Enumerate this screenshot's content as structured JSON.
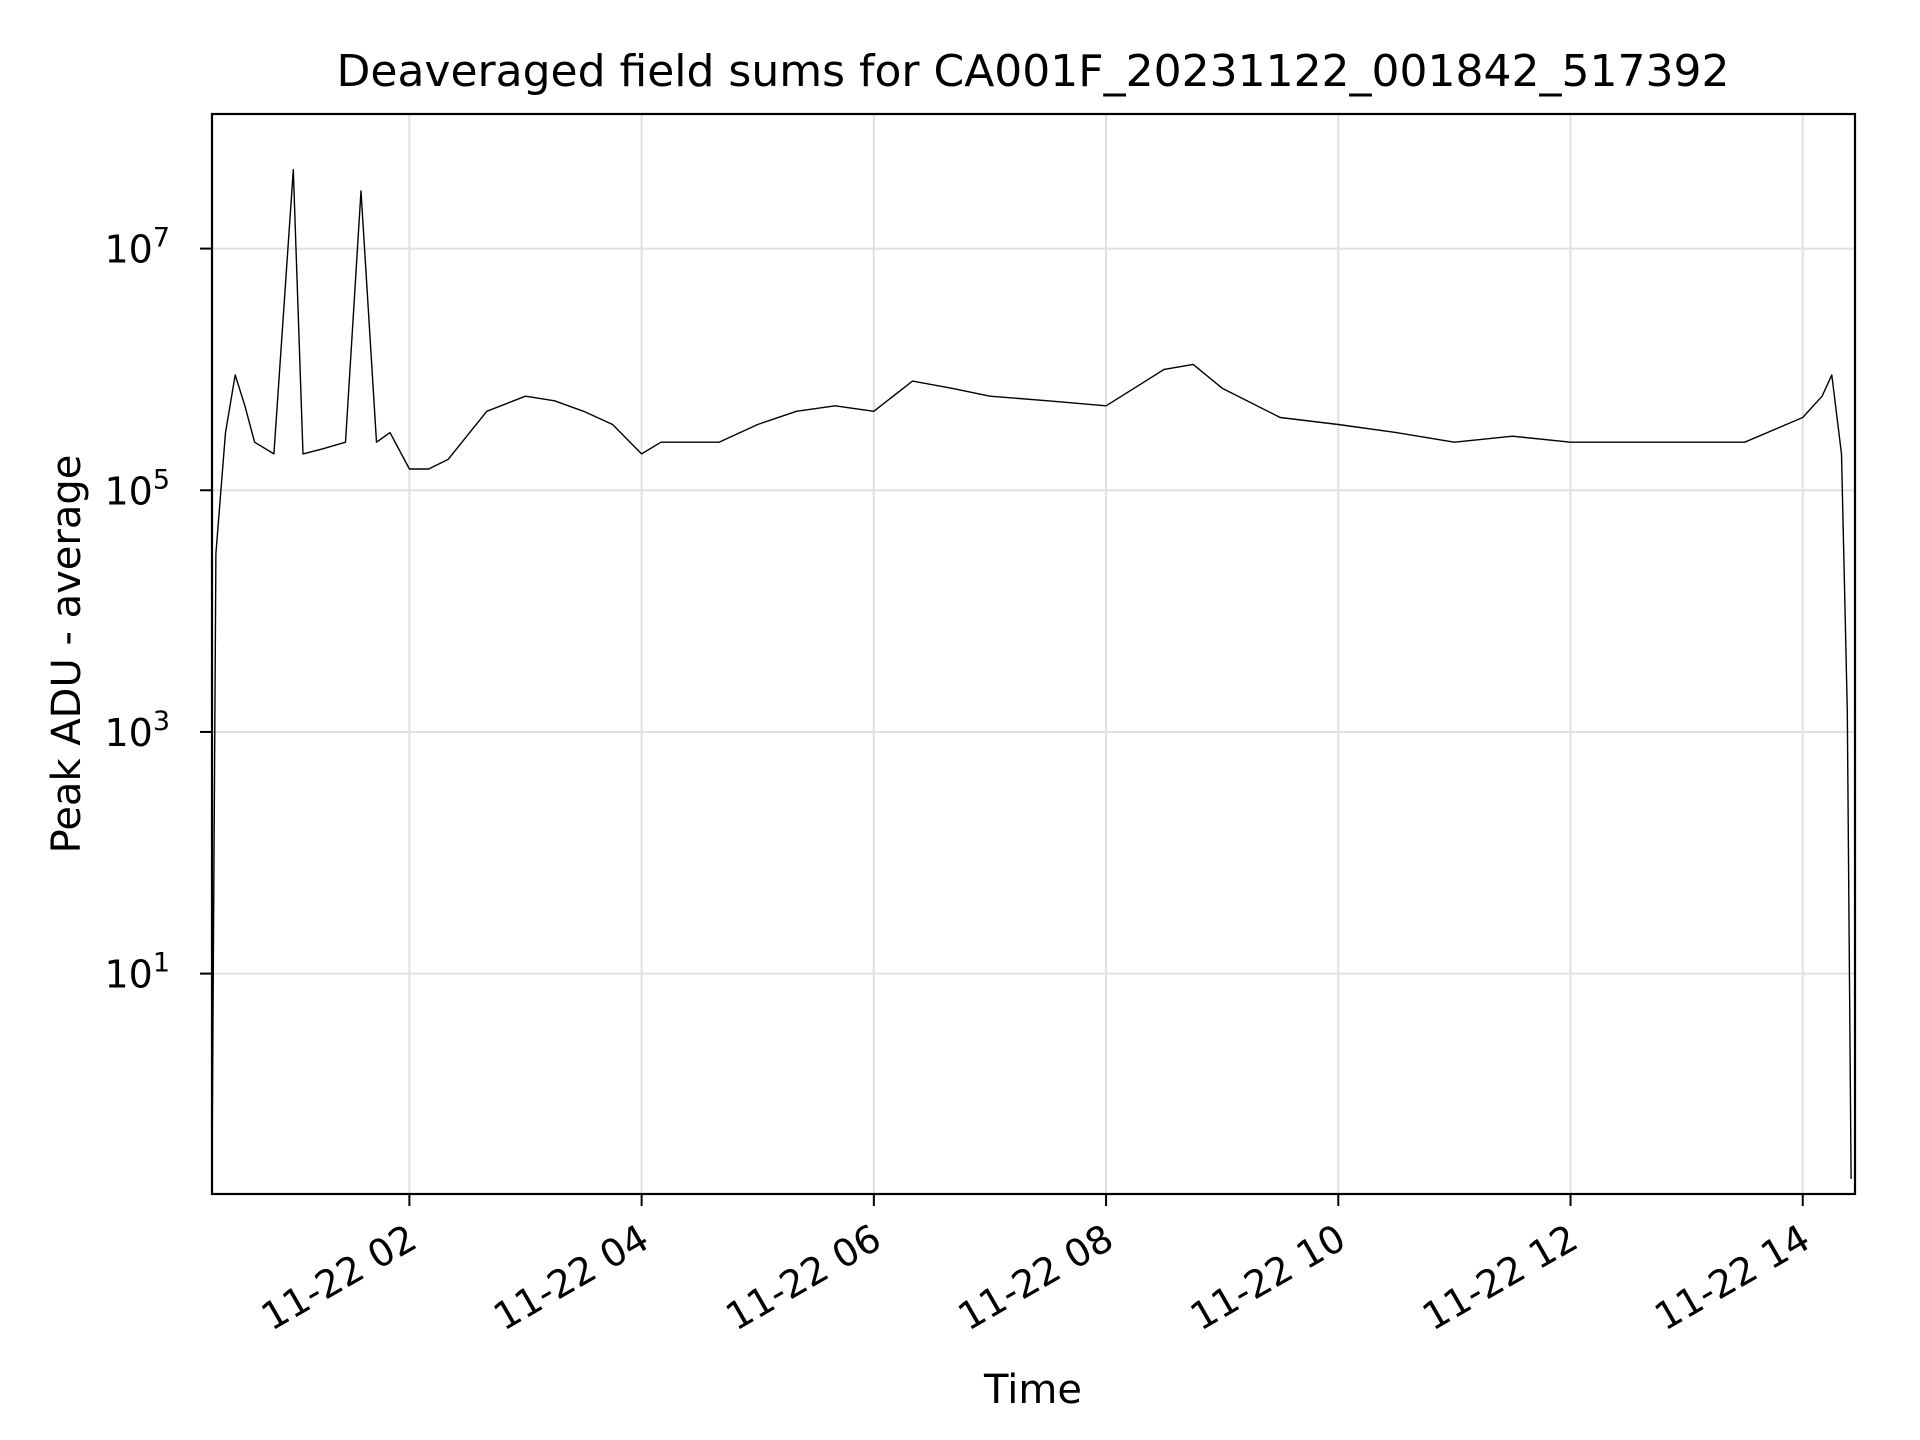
{
  "chart_data": {
    "type": "line",
    "title": "Deaveraged field sums for CA001F_20231122_001842_517392",
    "xlabel": "Time",
    "ylabel": "Peak ADU - average",
    "xscale": "time",
    "yscale": "log",
    "xlim": [
      "2023-11-22 00:18",
      "2023-11-22 14:27"
    ],
    "ylim": [
      0.15,
      130000000
    ],
    "grid": true,
    "legend": "none",
    "line_color": "#000000",
    "xticks": [
      {
        "value": "2023-11-22 02:00",
        "label": "11-22 02"
      },
      {
        "value": "2023-11-22 04:00",
        "label": "11-22 04"
      },
      {
        "value": "2023-11-22 06:00",
        "label": "11-22 06"
      },
      {
        "value": "2023-11-22 08:00",
        "label": "11-22 08"
      },
      {
        "value": "2023-11-22 10:00",
        "label": "11-22 10"
      },
      {
        "value": "2023-11-22 12:00",
        "label": "11-22 12"
      },
      {
        "value": "2023-11-22 14:00",
        "label": "11-22 14"
      }
    ],
    "yticks": [
      {
        "value": 10,
        "base": "10",
        "exp": "1"
      },
      {
        "value": 1000,
        "base": "10",
        "exp": "3"
      },
      {
        "value": 100000,
        "base": "10",
        "exp": "5"
      },
      {
        "value": 10000000,
        "base": "10",
        "exp": "7"
      }
    ],
    "series": [
      {
        "x": [
          "2023-11-22 00:18",
          "2023-11-22 00:20",
          "2023-11-22 00:25",
          "2023-11-22 00:30",
          "2023-11-22 00:35",
          "2023-11-22 00:40",
          "2023-11-22 00:50",
          "2023-11-22 01:00",
          "2023-11-22 01:05",
          "2023-11-22 01:15",
          "2023-11-22 01:27",
          "2023-11-22 01:35",
          "2023-11-22 01:43",
          "2023-11-22 01:50",
          "2023-11-22 02:00",
          "2023-11-22 02:10",
          "2023-11-22 02:20",
          "2023-11-22 02:40",
          "2023-11-22 03:00",
          "2023-11-22 03:15",
          "2023-11-22 03:30",
          "2023-11-22 03:45",
          "2023-11-22 04:00",
          "2023-11-22 04:10",
          "2023-11-22 04:20",
          "2023-11-22 04:40",
          "2023-11-22 05:00",
          "2023-11-22 05:20",
          "2023-11-22 05:40",
          "2023-11-22 06:00",
          "2023-11-22 06:20",
          "2023-11-22 06:40",
          "2023-11-22 07:00",
          "2023-11-22 07:30",
          "2023-11-22 08:00",
          "2023-11-22 08:30",
          "2023-11-22 08:45",
          "2023-11-22 09:00",
          "2023-11-22 09:30",
          "2023-11-22 10:00",
          "2023-11-22 10:30",
          "2023-11-22 11:00",
          "2023-11-22 11:30",
          "2023-11-22 12:00",
          "2023-11-22 12:30",
          "2023-11-22 13:00",
          "2023-11-22 13:30",
          "2023-11-22 14:00",
          "2023-11-22 14:10",
          "2023-11-22 14:15",
          "2023-11-22 14:20",
          "2023-11-22 14:23",
          "2023-11-22 14:25"
        ],
        "y": [
          0.2,
          30000,
          300000,
          900000,
          500000,
          250000,
          200000,
          45000000,
          200000,
          220000,
          250000,
          30000000,
          250000,
          300000,
          150000,
          150000,
          180000,
          450000,
          600000,
          550000,
          450000,
          350000,
          200000,
          250000,
          250000,
          250000,
          350000,
          450000,
          500000,
          450000,
          800000,
          700000,
          600000,
          550000,
          500000,
          1000000,
          1100000,
          700000,
          400000,
          350000,
          300000,
          250000,
          280000,
          250000,
          250000,
          250000,
          250000,
          400000,
          600000,
          900000,
          200000,
          1500,
          0.2
        ]
      }
    ]
  }
}
